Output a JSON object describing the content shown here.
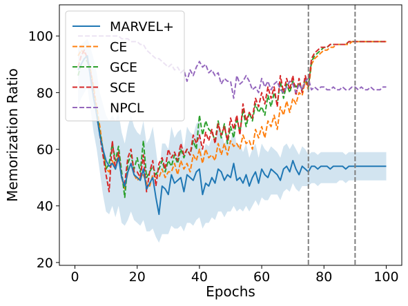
{
  "chart_data": {
    "type": "line",
    "xlabel": "Epochs",
    "ylabel": "Memorization Ratio",
    "xlim": [
      -5,
      105
    ],
    "ylim": [
      19,
      111
    ],
    "xticks": [
      0,
      20,
      40,
      60,
      80,
      100
    ],
    "yticks": [
      20,
      40,
      60,
      80,
      100
    ],
    "vlines": [
      75,
      90
    ],
    "grid": false,
    "legend_position": "upper-left",
    "series": [
      {
        "name": "MARVEL+",
        "style": "solid",
        "color": "#1f77b4",
        "x": [
          1,
          2,
          3,
          4,
          5,
          6,
          7,
          8,
          9,
          10,
          11,
          12,
          13,
          14,
          15,
          16,
          17,
          18,
          19,
          20,
          21,
          22,
          23,
          24,
          25,
          26,
          27,
          28,
          29,
          30,
          31,
          32,
          33,
          34,
          35,
          36,
          37,
          38,
          39,
          40,
          41,
          42,
          43,
          44,
          45,
          46,
          47,
          48,
          49,
          50,
          51,
          52,
          53,
          54,
          55,
          56,
          57,
          58,
          59,
          60,
          61,
          62,
          63,
          64,
          65,
          66,
          67,
          68,
          69,
          70,
          71,
          72,
          73,
          74,
          75,
          76,
          77,
          78,
          79,
          80,
          81,
          82,
          83,
          84,
          85,
          86,
          87,
          88,
          89,
          90,
          91,
          92,
          93,
          94,
          95,
          96,
          97,
          98,
          99,
          100
        ],
        "y": [
          88,
          90,
          92,
          93,
          85,
          78,
          72,
          65,
          60,
          56,
          54,
          55,
          53,
          57,
          50,
          47,
          52,
          55,
          51,
          50,
          49,
          53,
          46,
          48,
          50,
          43,
          37,
          47,
          46,
          44,
          51,
          48,
          49,
          50,
          45,
          51,
          50,
          49,
          52,
          53,
          44,
          48,
          47,
          50,
          48,
          53,
          52,
          49,
          51,
          50,
          55,
          49,
          50,
          48,
          51,
          47,
          50,
          52,
          48,
          53,
          51,
          50,
          53,
          52,
          51,
          49,
          53,
          54,
          52,
          56,
          53,
          51,
          54,
          53,
          52,
          54,
          54,
          53,
          54,
          54,
          54,
          53,
          54,
          54,
          54,
          54,
          53,
          54,
          54,
          54,
          54,
          54,
          54,
          54,
          54,
          54,
          54,
          54,
          54,
          54
        ],
        "y_lower": [
          75,
          78,
          80,
          82,
          74,
          66,
          60,
          52,
          44,
          38,
          37,
          40,
          36,
          40,
          34,
          33,
          35,
          38,
          35,
          34,
          33,
          35,
          31,
          31,
          32,
          29,
          27,
          30,
          30,
          30,
          33,
          32,
          32,
          33,
          31,
          34,
          34,
          33,
          35,
          36,
          32,
          34,
          34,
          36,
          35,
          38,
          38,
          36,
          38,
          38,
          40,
          38,
          39,
          38,
          40,
          38,
          40,
          42,
          40,
          43,
          42,
          42,
          44,
          44,
          44,
          42,
          45,
          46,
          45,
          48,
          46,
          45,
          47,
          47,
          47,
          48,
          48,
          47,
          48,
          48,
          48,
          48,
          48,
          48,
          49,
          49,
          48,
          49,
          49,
          49,
          49,
          49,
          49,
          49,
          49,
          49,
          49,
          49,
          49,
          49
        ],
        "y_upper": [
          96,
          97,
          98,
          99,
          96,
          92,
          87,
          80,
          76,
          72,
          70,
          72,
          70,
          73,
          66,
          62,
          68,
          72,
          68,
          66,
          65,
          70,
          62,
          64,
          68,
          60,
          51,
          62,
          62,
          60,
          68,
          64,
          66,
          67,
          60,
          68,
          66,
          65,
          69,
          70,
          58,
          62,
          61,
          64,
          62,
          68,
          66,
          62,
          64,
          63,
          68,
          61,
          62,
          59,
          62,
          57,
          60,
          62,
          57,
          62,
          60,
          59,
          61,
          60,
          59,
          57,
          61,
          62,
          60,
          62,
          60,
          58,
          61,
          60,
          58,
          59,
          59,
          58,
          59,
          59,
          59,
          59,
          59,
          59,
          59,
          59,
          58,
          59,
          59,
          59,
          59,
          59,
          59,
          59,
          59,
          59,
          59,
          59,
          59,
          59
        ]
      },
      {
        "name": "CE",
        "style": "dashed",
        "color": "#ff7f0e",
        "x": [
          1,
          2,
          3,
          4,
          5,
          6,
          7,
          8,
          9,
          10,
          11,
          12,
          13,
          14,
          15,
          16,
          17,
          18,
          19,
          20,
          21,
          22,
          23,
          24,
          25,
          26,
          27,
          28,
          29,
          30,
          31,
          32,
          33,
          34,
          35,
          36,
          37,
          38,
          39,
          40,
          41,
          42,
          43,
          44,
          45,
          46,
          47,
          48,
          49,
          50,
          51,
          52,
          53,
          54,
          55,
          56,
          57,
          58,
          59,
          60,
          61,
          62,
          63,
          64,
          65,
          66,
          67,
          68,
          69,
          70,
          71,
          72,
          73,
          74,
          75,
          76,
          77,
          78,
          79,
          80,
          81,
          82,
          83,
          84,
          85,
          86,
          87,
          88,
          89,
          90,
          91,
          92,
          93,
          94,
          95,
          96,
          97,
          98,
          99,
          100
        ],
        "y": [
          93,
          95,
          94,
          92,
          88,
          82,
          75,
          68,
          60,
          53,
          52,
          56,
          53,
          58,
          50,
          46,
          52,
          55,
          51,
          49,
          50,
          51,
          48,
          47,
          51,
          50,
          50,
          53,
          50,
          52,
          52,
          55,
          51,
          56,
          53,
          55,
          52,
          58,
          56,
          60,
          55,
          60,
          57,
          58,
          56,
          62,
          58,
          62,
          58,
          63,
          61,
          62,
          60,
          65,
          62,
          63,
          60,
          67,
          64,
          68,
          64,
          70,
          68,
          72,
          67,
          75,
          72,
          77,
          73,
          78,
          76,
          80,
          79,
          84,
          81,
          90,
          92,
          93,
          94,
          95,
          95,
          96,
          96,
          97,
          97,
          97,
          97,
          97,
          98,
          98,
          98,
          98,
          98,
          98,
          98,
          98,
          98,
          98,
          98,
          98
        ]
      },
      {
        "name": "GCE",
        "style": "dashed",
        "color": "#2ca02c",
        "x": [
          1,
          2,
          3,
          4,
          5,
          6,
          7,
          8,
          9,
          10,
          11,
          12,
          13,
          14,
          15,
          16,
          17,
          18,
          19,
          20,
          21,
          22,
          23,
          24,
          25,
          26,
          27,
          28,
          29,
          30,
          31,
          32,
          33,
          34,
          35,
          36,
          37,
          38,
          39,
          40,
          41,
          42,
          43,
          44,
          45,
          46,
          47,
          48,
          49,
          50,
          51,
          52,
          53,
          54,
          55,
          56,
          57,
          58,
          59,
          60,
          61,
          62,
          63,
          64,
          65,
          66,
          67,
          68,
          69,
          70,
          71,
          72,
          73,
          74,
          75,
          76,
          77,
          78,
          79,
          80,
          81,
          82,
          83,
          84,
          85,
          86,
          87,
          88,
          89,
          90,
          91,
          92,
          93,
          94,
          95,
          96,
          97,
          98,
          99,
          100
        ],
        "y": [
          86,
          90,
          92,
          91,
          87,
          80,
          73,
          66,
          60,
          53,
          55,
          62,
          56,
          61,
          52,
          43,
          55,
          58,
          53,
          57,
          52,
          63,
          50,
          52,
          54,
          51,
          53,
          56,
          52,
          56,
          54,
          58,
          55,
          60,
          57,
          60,
          58,
          63,
          60,
          72,
          65,
          70,
          67,
          66,
          63,
          70,
          64,
          69,
          62,
          68,
          64,
          71,
          66,
          74,
          68,
          73,
          70,
          76,
          73,
          75,
          72,
          79,
          75,
          80,
          76,
          84,
          78,
          83,
          80,
          84,
          82,
          83,
          81,
          85,
          82,
          91,
          93,
          94,
          95,
          96,
          96,
          97,
          97,
          97,
          97,
          97,
          97,
          98,
          98,
          98,
          98,
          98,
          98,
          98,
          98,
          98,
          98,
          98,
          98,
          98
        ]
      },
      {
        "name": "SCE",
        "style": "dashed",
        "color": "#d62728",
        "x": [
          1,
          2,
          3,
          4,
          5,
          6,
          7,
          8,
          9,
          10,
          11,
          12,
          13,
          14,
          15,
          16,
          17,
          18,
          19,
          20,
          21,
          22,
          23,
          24,
          25,
          26,
          27,
          28,
          29,
          30,
          31,
          32,
          33,
          34,
          35,
          36,
          37,
          38,
          39,
          40,
          41,
          42,
          43,
          44,
          45,
          46,
          47,
          48,
          49,
          50,
          51,
          52,
          53,
          54,
          55,
          56,
          57,
          58,
          59,
          60,
          61,
          62,
          63,
          64,
          65,
          66,
          67,
          68,
          69,
          70,
          71,
          72,
          73,
          74,
          75,
          76,
          77,
          78,
          79,
          80,
          81,
          82,
          83,
          84,
          85,
          86,
          87,
          88,
          89,
          90,
          91,
          92,
          93,
          94,
          95,
          96,
          97,
          98,
          99,
          100
        ],
        "y": [
          89,
          93,
          95,
          92,
          87,
          80,
          72,
          65,
          58,
          51,
          45,
          63,
          53,
          59,
          50,
          48,
          57,
          60,
          52,
          52,
          50,
          58,
          45,
          52,
          56,
          47,
          55,
          57,
          53,
          60,
          57,
          59,
          56,
          62,
          58,
          60,
          58,
          65,
          62,
          65,
          60,
          66,
          63,
          67,
          62,
          69,
          65,
          68,
          63,
          71,
          67,
          72,
          65,
          76,
          70,
          73,
          71,
          78,
          75,
          80,
          76,
          82,
          78,
          82,
          75,
          86,
          80,
          85,
          81,
          86,
          79,
          85,
          80,
          86,
          82,
          92,
          94,
          95,
          96,
          96,
          96,
          97,
          97,
          97,
          97,
          97,
          97,
          98,
          98,
          98,
          98,
          98,
          98,
          98,
          98,
          98,
          98,
          98,
          98,
          98
        ]
      },
      {
        "name": "NPCL",
        "style": "dashed",
        "color": "#9467bd",
        "x": [
          1,
          2,
          3,
          4,
          5,
          6,
          7,
          8,
          9,
          10,
          11,
          12,
          13,
          14,
          15,
          16,
          17,
          18,
          19,
          20,
          21,
          22,
          23,
          24,
          25,
          26,
          27,
          28,
          29,
          30,
          31,
          32,
          33,
          34,
          35,
          36,
          37,
          38,
          39,
          40,
          41,
          42,
          43,
          44,
          45,
          46,
          47,
          48,
          49,
          50,
          51,
          52,
          53,
          54,
          55,
          56,
          57,
          58,
          59,
          60,
          61,
          62,
          63,
          64,
          65,
          66,
          67,
          68,
          69,
          70,
          71,
          72,
          73,
          74,
          75,
          76,
          77,
          78,
          79,
          80,
          81,
          82,
          83,
          84,
          85,
          86,
          87,
          88,
          89,
          90,
          91,
          92,
          93,
          94,
          95,
          96,
          97,
          98,
          99,
          100
        ],
        "y": [
          100,
          100,
          100,
          100,
          100,
          100,
          100,
          100,
          100,
          100,
          100,
          100,
          100,
          100,
          99,
          99,
          99,
          98,
          98,
          98,
          97,
          97,
          95,
          94,
          93,
          92,
          92,
          91,
          90,
          89,
          90,
          88,
          89,
          87,
          88,
          84,
          88,
          86,
          89,
          91,
          89,
          90,
          87,
          88,
          86,
          87,
          83,
          85,
          84,
          84,
          78,
          86,
          83,
          84,
          86,
          84,
          81,
          82,
          80,
          85,
          82,
          84,
          81,
          83,
          84,
          81,
          80,
          82,
          84,
          83,
          80,
          83,
          81,
          84,
          85,
          81,
          82,
          81,
          82,
          82,
          81,
          81,
          82,
          81,
          81,
          82,
          81,
          81,
          82,
          82,
          81,
          82,
          81,
          81,
          82,
          81,
          81,
          81,
          82,
          82
        ]
      }
    ]
  }
}
